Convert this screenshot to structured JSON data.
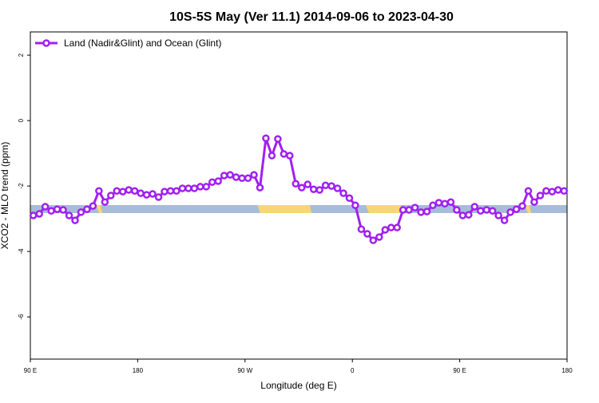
{
  "chart_data": {
    "type": "line",
    "title": "10S-5S May (Ver 11.1)   2014-09-06 to 2023-04-30",
    "x_label": "Longitude (deg E)",
    "y_label": "XCO2 - MLO trend (ppm)",
    "x": [
      92.5,
      97.5,
      102.5,
      107.5,
      112.5,
      117.5,
      122.5,
      127.5,
      132.5,
      137.5,
      142.5,
      147.5,
      152.5,
      157.5,
      162.5,
      167.5,
      172.5,
      177.5,
      182.5,
      187.5,
      192.5,
      197.5,
      202.5,
      207.5,
      212.5,
      217.5,
      222.5,
      227.5,
      232.5,
      237.5,
      242.5,
      247.5,
      252.5,
      257.5,
      262.5,
      267.5,
      272.5,
      277.5,
      282.5,
      287.5,
      292.5,
      297.5,
      302.5,
      307.5,
      312.5,
      317.5,
      322.5,
      327.5,
      332.5,
      337.5,
      342.5,
      347.5,
      352.5,
      357.5,
      362.5,
      367.5,
      372.5,
      377.5,
      382.5,
      387.5,
      392.5,
      397.5,
      402.5,
      407.5,
      412.5,
      417.5,
      422.5,
      427.5,
      432.5,
      437.5,
      442.5,
      447.5,
      452.5,
      457.5,
      462.5,
      467.5,
      472.5,
      477.5,
      482.5,
      487.5,
      492.5,
      497.5,
      502.5,
      507.5,
      512.5,
      517.5,
      522.5,
      527.5,
      532.5,
      537.5
    ],
    "series": [
      {
        "name": "Land (Nadir&Glint) and Ocean (Glint)",
        "color": "#a020f0",
        "values": [
          -2.9,
          -2.85,
          -2.63,
          -2.76,
          -2.71,
          -2.73,
          -2.9,
          -3.05,
          -2.8,
          -2.71,
          -2.61,
          -2.15,
          -2.49,
          -2.29,
          -2.15,
          -2.17,
          -2.12,
          -2.15,
          -2.22,
          -2.27,
          -2.24,
          -2.34,
          -2.17,
          -2.15,
          -2.15,
          -2.07,
          -2.07,
          -2.07,
          -2.02,
          -2.02,
          -1.88,
          -1.85,
          -1.68,
          -1.66,
          -1.73,
          -1.76,
          -1.76,
          -1.66,
          -2.05,
          -0.54,
          -1.07,
          -0.56,
          -1.02,
          -1.07,
          -1.93,
          -2.05,
          -1.95,
          -2.1,
          -2.12,
          -1.98,
          -2.0,
          -2.07,
          -2.22,
          -2.37,
          -2.59,
          -3.32,
          -3.46,
          -3.66,
          -3.56,
          -3.34,
          -3.27,
          -3.27,
          -2.73,
          -2.73,
          -2.66,
          -2.8,
          -2.78,
          -2.59,
          -2.51,
          -2.54,
          -2.49,
          -2.73,
          -2.9,
          -2.88,
          -2.63,
          -2.76,
          -2.73,
          -2.76,
          -2.9,
          -3.05,
          -2.8,
          -2.71,
          -2.61,
          -2.15,
          -2.49,
          -2.29,
          -2.15,
          -2.17,
          -2.12,
          -2.15
        ]
      }
    ],
    "xlim": [
      90,
      540
    ],
    "xticks": [
      {
        "value": 90,
        "label": "90 E"
      },
      180,
      {
        "value": 270,
        "label": "90 W"
      },
      {
        "value": 360,
        "label": "0"
      },
      {
        "value": 450,
        "label": "90 E"
      },
      {
        "value": 540,
        "label": "180"
      }
    ],
    "ylim": [
      -7.29,
      2.71
    ],
    "yticks": [
      -6,
      -4,
      -2,
      0,
      2
    ],
    "legend": "top-left"
  }
}
